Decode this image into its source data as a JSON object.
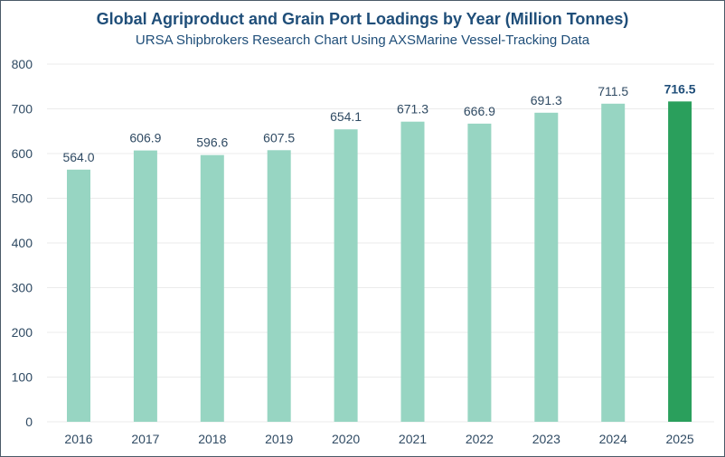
{
  "chart_data": {
    "type": "bar",
    "title": "Global Agriproduct and Grain Port Loadings by Year (Million Tonnes)",
    "subtitle": "URSA Shipbrokers Research Chart Using AXSMarine Vessel-Tracking Data",
    "xlabel": "",
    "ylabel": "",
    "categories": [
      "2016",
      "2017",
      "2018",
      "2019",
      "2020",
      "2021",
      "2022",
      "2023",
      "2024",
      "2025"
    ],
    "values": [
      564.0,
      606.9,
      596.6,
      607.5,
      654.1,
      671.3,
      666.9,
      691.3,
      711.5,
      716.5
    ],
    "labels": [
      "564.0",
      "606.9",
      "596.6",
      "607.5",
      "654.1",
      "671.3",
      "666.9",
      "691.3",
      "711.5",
      "716.5"
    ],
    "highlight_index": 9,
    "ylim": [
      0,
      800
    ],
    "yticks": [
      0,
      100,
      200,
      300,
      400,
      500,
      600,
      700,
      800
    ],
    "grid": true,
    "colors": {
      "bar": "#97d5c2",
      "highlight": "#2a9f5c",
      "text": "#2f4a63",
      "title": "#1f4e79",
      "grid": "#ebebeb"
    }
  }
}
